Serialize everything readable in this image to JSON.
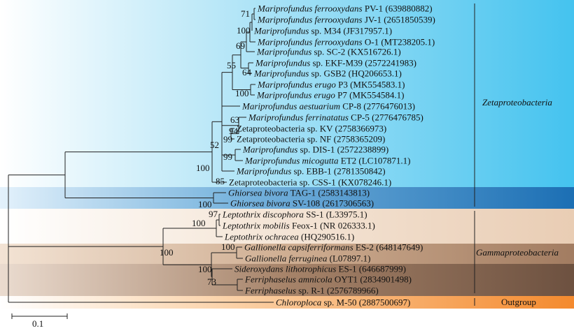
{
  "colors": {
    "zeta_band": "#6fd0f0",
    "ghiorsea_band": "#2e86c8",
    "gamma_band": "#e9cdb4",
    "outgroup_band": "#f6a45a"
  },
  "taxa": [
    {
      "genus": "Mariprofundus",
      "species": "ferrooxydans",
      "strain": "PV-1",
      "accession": "(639880882)"
    },
    {
      "genus": "Mariprofundus",
      "species": "ferrooxydans",
      "strain": "JV-1",
      "accession": "(2651850539)"
    },
    {
      "genus": "Mariprofundus",
      "species": "",
      "strain": "sp. M34",
      "accession": "(JF317957.1)"
    },
    {
      "genus": "Mariprofundus",
      "species": "ferrooxydans",
      "strain": "O-1",
      "accession": "(MT238205.1)"
    },
    {
      "genus": "Mariprofundus",
      "species": "",
      "strain": "sp. SC-2",
      "accession": "(KX516726.1)"
    },
    {
      "genus": "Mariprofundus",
      "species": "",
      "strain": "sp. EKF-M39",
      "accession": "(2572241983)"
    },
    {
      "genus": "Mariprofundus",
      "species": "",
      "strain": "sp. GSB2",
      "accession": "(HQ206653.1)"
    },
    {
      "genus": "Mariprofundus",
      "species": "erugo",
      "strain": "P3",
      "accession": "(MK554583.1)"
    },
    {
      "genus": "Mariprofundus",
      "species": "erugo",
      "strain": "P7",
      "accession": "(MK554584.1)"
    },
    {
      "genus": "Mariprofundus",
      "species": "aestuarium",
      "strain": "CP-8",
      "accession": "(2776476013)"
    },
    {
      "genus": "Mariprofundus",
      "species": "ferrinatatus",
      "strain": "CP-5",
      "accession": "(2776476785)"
    },
    {
      "genus": "Zetaproteobacteria",
      "species": "",
      "strain": "sp. KV",
      "accession": "(2758366973)"
    },
    {
      "genus": "Zetaproteobacteria",
      "species": "",
      "strain": "sp. NF",
      "accession": "(2758365209)"
    },
    {
      "genus": "Mariprofundus",
      "species": "",
      "strain": "sp. DIS-1",
      "accession": "(2572238899)"
    },
    {
      "genus": "Mariprofundus",
      "species": "micogutta",
      "strain": "ET2",
      "accession": "(LC107871.1)"
    },
    {
      "genus": "Mariprofundus",
      "species": "",
      "strain": "sp. EBB-1",
      "accession": "(2781350842)"
    },
    {
      "genus": "Zetaproteobacteria",
      "species": "",
      "strain": "sp. CSS-1",
      "accession": "(KX078246.1)"
    },
    {
      "genus": "Ghiorsea",
      "species": "bivora",
      "strain": "TAG-1",
      "accession": "(2583143813)"
    },
    {
      "genus": "Ghiorsea",
      "species": "bivora",
      "strain": "SV-108",
      "accession": "(2617306563)"
    },
    {
      "genus": "Leptothrix",
      "species": "discophora",
      "strain": "SS-1",
      "accession": "(L33975.1)"
    },
    {
      "genus": "Leptothrix",
      "species": "mobilis",
      "strain": "Feox-1",
      "accession": "(NR 026333.1)"
    },
    {
      "genus": "Leptothrix",
      "species": "ochracea",
      "strain": "",
      "accession": "(HQ290516.1)"
    },
    {
      "genus": "Gallionella",
      "species": "capsiferriformans",
      "strain": "ES-2",
      "accession": "(648147649)"
    },
    {
      "genus": "Gallionella",
      "species": "ferruginea",
      "strain": "",
      "accession": "(L07897.1)"
    },
    {
      "genus": "Sideroxydans",
      "species": "lithotrophicus",
      "strain": "ES-1",
      "accession": "(646687999)"
    },
    {
      "genus": "Ferriphaselus",
      "species": "amnicola",
      "strain": "OYT1",
      "accession": "(2834901498)"
    },
    {
      "genus": "Ferriphaselus",
      "species": "",
      "strain": "sp. R-1",
      "accession": "(2576789966)"
    },
    {
      "genus": "Chloroploca",
      "species": "",
      "strain": "sp. M-50",
      "accession": "(2887500697)"
    }
  ],
  "bootstrap": [
    "71",
    "100",
    "69",
    "55",
    "64",
    "100",
    "63",
    "94",
    "99",
    "52",
    "99",
    "100",
    "85",
    "100",
    "97",
    "100",
    "100",
    "100",
    "100",
    "73"
  ],
  "clades": {
    "zeta": "Zetaproteobacteria",
    "gamma": "Gammaproteobacteria",
    "outgroup": "Outgroup"
  },
  "scale_bar": "0.1"
}
